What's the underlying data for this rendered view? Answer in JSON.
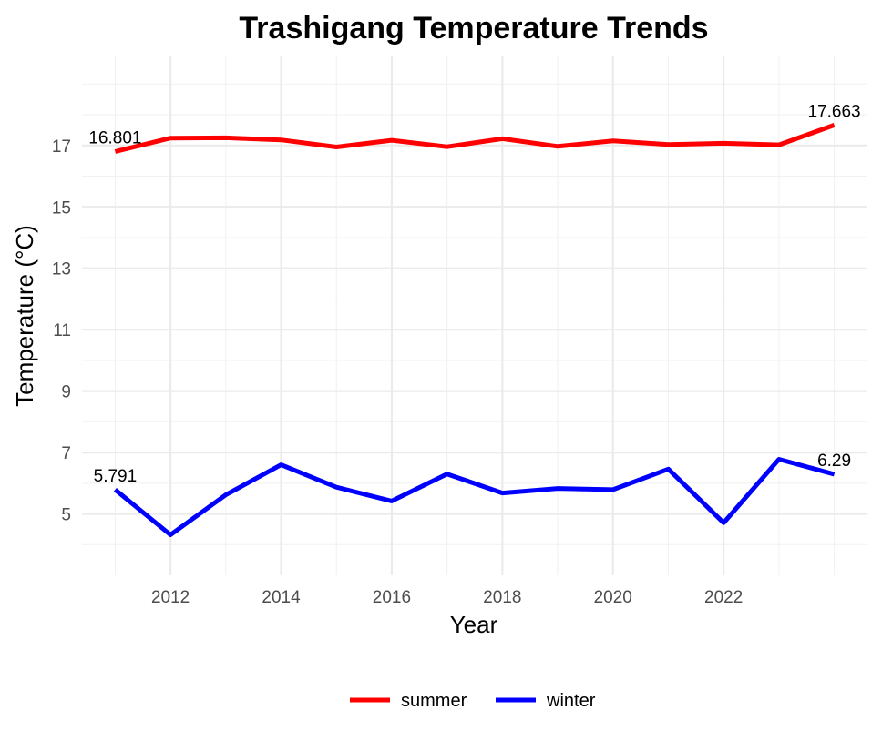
{
  "chart_data": {
    "type": "line",
    "title": "Trashigang Temperature Trends",
    "xlabel": "Year",
    "ylabel": "Temperature (°C)",
    "x": [
      2011,
      2012,
      2013,
      2014,
      2015,
      2016,
      2017,
      2018,
      2019,
      2020,
      2021,
      2022,
      2023,
      2024
    ],
    "xlim": [
      2010.4,
      2024.6
    ],
    "ylim": [
      3.0,
      19.9
    ],
    "x_ticks": [
      2012,
      2014,
      2016,
      2018,
      2020,
      2022
    ],
    "x_tick_labels": [
      "2012",
      "2014",
      "2016",
      "2018",
      "2020",
      "2022"
    ],
    "y_ticks": [
      5,
      7,
      9,
      11,
      13,
      15,
      17
    ],
    "y_tick_labels": [
      "5",
      "7",
      "9",
      "11",
      "13",
      "15",
      "17"
    ],
    "grid": true,
    "legend_position": "bottom",
    "series": [
      {
        "name": "summer",
        "color": "#ff0000",
        "values": [
          16.801,
          17.24,
          17.25,
          17.18,
          16.95,
          17.17,
          16.96,
          17.22,
          16.97,
          17.15,
          17.03,
          17.07,
          17.02,
          17.663
        ]
      },
      {
        "name": "winter",
        "color": "#0000ff",
        "values": [
          5.791,
          4.32,
          5.62,
          6.6,
          5.87,
          5.42,
          6.3,
          5.68,
          5.83,
          5.79,
          6.46,
          4.71,
          6.78,
          6.29
        ]
      }
    ],
    "annotations": [
      {
        "series": "summer",
        "x": 2011,
        "y": 16.801,
        "text": "16.801"
      },
      {
        "series": "summer",
        "x": 2024,
        "y": 17.663,
        "text": "17.663"
      },
      {
        "series": "winter",
        "x": 2011,
        "y": 5.791,
        "text": "5.791"
      },
      {
        "series": "winter",
        "x": 2024,
        "y": 6.29,
        "text": "6.29"
      }
    ]
  }
}
